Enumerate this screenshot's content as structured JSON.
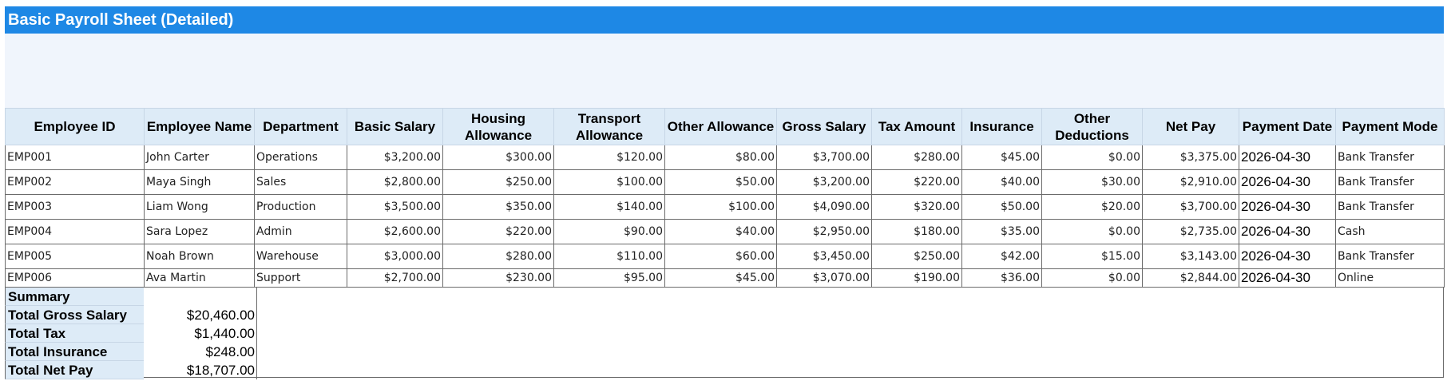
{
  "sheet": {
    "title": "Basic Payroll Sheet (Detailed)"
  },
  "columns": [
    "Employee ID",
    "Employee Name",
    "Department",
    "Basic Salary",
    "Housing Allowance",
    "Transport Allowance",
    "Other Allowance",
    "Gross Salary",
    "Tax Amount",
    "Insurance",
    "Other Deductions",
    "Net Pay",
    "Payment Date",
    "Payment Mode"
  ],
  "rows": [
    [
      "EMP001",
      "John Carter",
      "Operations",
      "$3,200.00",
      "$300.00",
      "$120.00",
      "$80.00",
      "$3,700.00",
      "$280.00",
      "$45.00",
      "$0.00",
      "$3,375.00",
      "2026-04-30",
      "Bank Transfer"
    ],
    [
      "EMP002",
      "Maya Singh",
      "Sales",
      "$2,800.00",
      "$250.00",
      "$100.00",
      "$50.00",
      "$3,200.00",
      "$220.00",
      "$40.00",
      "$30.00",
      "$2,910.00",
      "2026-04-30",
      "Bank Transfer"
    ],
    [
      "EMP003",
      "Liam Wong",
      "Production",
      "$3,500.00",
      "$350.00",
      "$140.00",
      "$100.00",
      "$4,090.00",
      "$320.00",
      "$50.00",
      "$20.00",
      "$3,700.00",
      "2026-04-30",
      "Bank Transfer"
    ],
    [
      "EMP004",
      "Sara Lopez",
      "Admin",
      "$2,600.00",
      "$220.00",
      "$90.00",
      "$40.00",
      "$2,950.00",
      "$180.00",
      "$35.00",
      "$0.00",
      "$2,735.00",
      "2026-04-30",
      "Cash"
    ],
    [
      "EMP005",
      "Noah Brown",
      "Warehouse",
      "$3,000.00",
      "$280.00",
      "$110.00",
      "$60.00",
      "$3,450.00",
      "$250.00",
      "$42.00",
      "$15.00",
      "$3,143.00",
      "2026-04-30",
      "Bank Transfer"
    ],
    [
      "EMP006",
      "Ava Martin",
      "Support",
      "$2,700.00",
      "$230.00",
      "$95.00",
      "$45.00",
      "$3,070.00",
      "$190.00",
      "$36.00",
      "$0.00",
      "$2,844.00",
      "2026-04-30",
      "Online"
    ]
  ],
  "summary": {
    "heading": "Summary",
    "items": [
      {
        "label": "Total Gross Salary",
        "value": "$20,460.00"
      },
      {
        "label": "Total Tax",
        "value": "$1,440.00"
      },
      {
        "label": "Total Insurance",
        "value": "$248.00"
      },
      {
        "label": "Total Net Pay",
        "value": "$18,707.00"
      }
    ]
  }
}
